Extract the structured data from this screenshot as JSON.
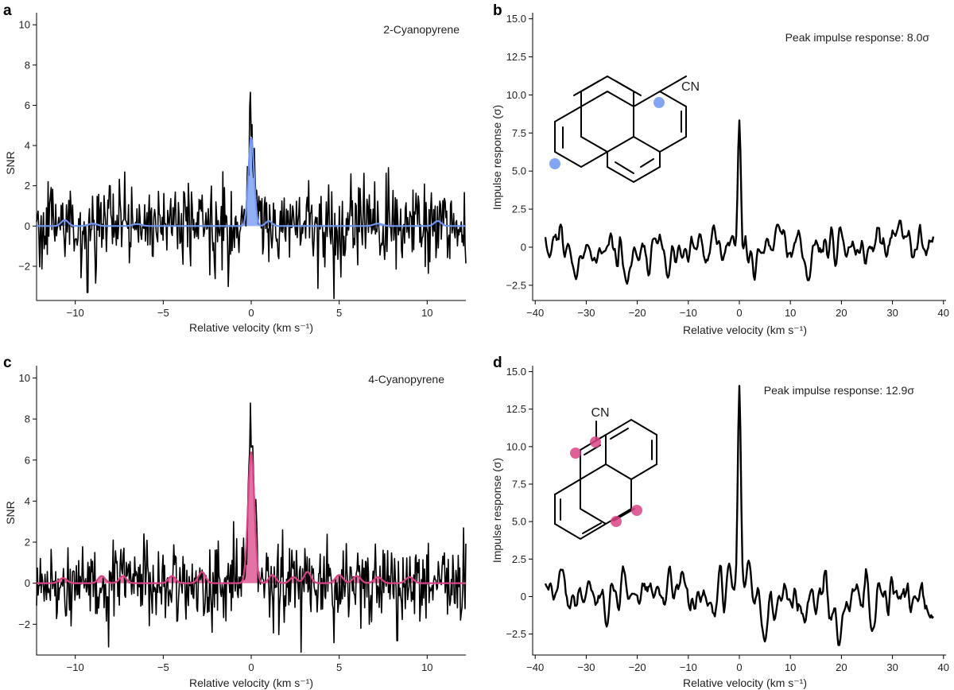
{
  "figure": {
    "panels": [
      "a",
      "b",
      "c",
      "d"
    ]
  },
  "colors": {
    "blue": "#6f95f0",
    "pink": "#d94487",
    "trace": "#000000"
  },
  "chart_data": [
    {
      "id": "a",
      "type": "line",
      "letter": "a",
      "annotation": "2-Cyanopyrene",
      "xlabel": "Relative velocity (km s⁻¹)",
      "ylabel": "SNR",
      "xlim": [
        -12.2,
        12.2
      ],
      "ylim": [
        -3.7,
        10.6
      ],
      "xticks": [
        -10,
        -5,
        0,
        5,
        10
      ],
      "xtick_labels": [
        "−10",
        "−5",
        "0",
        "5",
        "10"
      ],
      "yticks": [
        -2,
        0,
        2,
        4,
        6,
        8,
        10
      ],
      "ytick_labels": [
        "−2",
        "0",
        "2",
        "4",
        "6",
        "8",
        "10"
      ],
      "series": [
        {
          "role": "observed",
          "color": "#000000",
          "noise_sigma": 0.95,
          "peak": {
            "x": 0.0,
            "y": 5.5,
            "width": 0.18
          },
          "extremes": [
            {
              "x": 4.7,
              "y": -3.6
            },
            {
              "x": 3.8,
              "y": -3.1
            },
            {
              "x": -9.3,
              "y": -3.3
            },
            {
              "x": -1.3,
              "y": -3.0
            },
            {
              "x": 7.8,
              "y": 2.9
            },
            {
              "x": -1.6,
              "y": 2.7
            }
          ]
        },
        {
          "role": "model",
          "color": "#6f95f0",
          "components": [
            {
              "x": 0.0,
              "y": 4.4,
              "width": 0.16
            },
            {
              "x": -10.6,
              "y": 0.3,
              "width": 0.2
            },
            {
              "x": -9.0,
              "y": 0.12,
              "width": 0.25
            },
            {
              "x": -6.5,
              "y": 0.1,
              "width": 0.25
            },
            {
              "x": 1.0,
              "y": 0.25,
              "width": 0.18
            },
            {
              "x": 7.2,
              "y": 0.12,
              "width": 0.25
            },
            {
              "x": 10.6,
              "y": 0.25,
              "width": 0.2
            }
          ]
        }
      ]
    },
    {
      "id": "b",
      "type": "line",
      "letter": "b",
      "annotation": "Peak impulse response: 8.0σ",
      "xlabel": "Relative velocity (km s⁻¹)",
      "ylabel": "Impulse response (σ)",
      "xlim": [
        -40.5,
        40.5
      ],
      "ylim": [
        -3.5,
        15.4
      ],
      "xticks": [
        -40,
        -30,
        -20,
        -10,
        0,
        10,
        20,
        30,
        40
      ],
      "xtick_labels": [
        "−40",
        "−30",
        "−20",
        "−10",
        "0",
        "10",
        "20",
        "30",
        "40"
      ],
      "yticks": [
        -2.5,
        0,
        2.5,
        5.0,
        7.5,
        10.0,
        12.5,
        15.0
      ],
      "ytick_labels": [
        "−2.5",
        "0",
        "2.5",
        "5.0",
        "7.5",
        "10.0",
        "12.5",
        "15.0"
      ],
      "series": [
        {
          "role": "impulse",
          "color": "#000000",
          "x_range": [
            -38,
            38
          ],
          "noise_sigma": 0.85,
          "peak": {
            "x": 0.0,
            "y": 8.0,
            "width": 0.3
          },
          "features": [
            {
              "x": 7.5,
              "y": 1.5
            },
            {
              "x": 31.5,
              "y": 1.8
            },
            {
              "x": 13.5,
              "y": -2.2
            },
            {
              "x": -22,
              "y": -2.4
            },
            {
              "x": -32,
              "y": -2.1
            },
            {
              "x": -14,
              "y": -2.0
            }
          ]
        }
      ],
      "molecule": {
        "name": "2-cyanopyrene",
        "substituent": "CN",
        "highlight_color": "#6f95f0"
      }
    },
    {
      "id": "c",
      "type": "line",
      "letter": "c",
      "annotation": "4-Cyanopyrene",
      "xlabel": "Relative velocity (km s⁻¹)",
      "ylabel": "SNR",
      "xlim": [
        -12.2,
        12.2
      ],
      "ylim": [
        -3.5,
        10.6
      ],
      "xticks": [
        -10,
        -5,
        0,
        5,
        10
      ],
      "xtick_labels": [
        "−10",
        "−5",
        "0",
        "5",
        "10"
      ],
      "yticks": [
        -2,
        0,
        2,
        4,
        6,
        8,
        10
      ],
      "ytick_labels": [
        "−2",
        "0",
        "2",
        "4",
        "6",
        "8",
        "10"
      ],
      "series": [
        {
          "role": "observed",
          "color": "#000000",
          "noise_sigma": 0.95,
          "peak": {
            "x": 0.0,
            "y": 7.3,
            "width": 0.18
          },
          "extremes": [
            {
              "x": -8.1,
              "y": -3.1
            },
            {
              "x": 4.7,
              "y": -2.9
            },
            {
              "x": -6.1,
              "y": 2.4
            },
            {
              "x": -1.0,
              "y": 3.0
            },
            {
              "x": 1.8,
              "y": 2.6
            },
            {
              "x": 8.3,
              "y": -2.8
            }
          ]
        },
        {
          "role": "model",
          "color": "#d94487",
          "components": [
            {
              "x": 0.0,
              "y": 6.4,
              "width": 0.18
            },
            {
              "x": -2.8,
              "y": 0.55,
              "width": 0.2
            },
            {
              "x": 3.2,
              "y": 0.55,
              "width": 0.2
            },
            {
              "x": -8.5,
              "y": 0.35,
              "width": 0.2
            },
            {
              "x": -7.3,
              "y": 0.35,
              "width": 0.2
            },
            {
              "x": -4.5,
              "y": 0.35,
              "width": 0.2
            },
            {
              "x": 1.2,
              "y": 0.4,
              "width": 0.2
            },
            {
              "x": 2.4,
              "y": 0.3,
              "width": 0.2
            },
            {
              "x": 5.0,
              "y": 0.4,
              "width": 0.22
            },
            {
              "x": 6.0,
              "y": 0.35,
              "width": 0.22
            },
            {
              "x": 7.2,
              "y": 0.3,
              "width": 0.22
            },
            {
              "x": 9.0,
              "y": 0.3,
              "width": 0.22
            },
            {
              "x": -10.7,
              "y": 0.25,
              "width": 0.22
            }
          ]
        }
      ]
    },
    {
      "id": "d",
      "type": "line",
      "letter": "d",
      "annotation": "Peak impulse response: 12.9σ",
      "xlabel": "Relative velocity (km s⁻¹)",
      "ylabel": "Impulse response (σ)",
      "xlim": [
        -40.5,
        40.5
      ],
      "ylim": [
        -3.9,
        15.4
      ],
      "xticks": [
        -40,
        -30,
        -20,
        -10,
        0,
        10,
        20,
        30,
        40
      ],
      "xtick_labels": [
        "−40",
        "−30",
        "−20",
        "−10",
        "0",
        "10",
        "20",
        "30",
        "40"
      ],
      "yticks": [
        -2.5,
        0,
        2.5,
        5.0,
        7.5,
        10.0,
        12.5,
        15.0
      ],
      "ytick_labels": [
        "−2.5",
        "0",
        "2.5",
        "5.0",
        "7.5",
        "10.0",
        "12.5",
        "15.0"
      ],
      "series": [
        {
          "role": "impulse",
          "color": "#000000",
          "x_range": [
            -38,
            38
          ],
          "noise_sigma": 0.95,
          "peak": {
            "x": 0.0,
            "y": 12.9,
            "width": 0.3
          },
          "features": [
            {
              "x": 5.0,
              "y": -3.0
            },
            {
              "x": 19.5,
              "y": -3.3
            },
            {
              "x": -26,
              "y": -2.0
            },
            {
              "x": -35,
              "y": 1.8
            },
            {
              "x": -2.0,
              "y": 2.2
            },
            {
              "x": 1.8,
              "y": 2.4
            },
            {
              "x": 26,
              "y": -2.3
            }
          ]
        }
      ],
      "molecule": {
        "name": "4-cyanopyrene",
        "substituent": "CN",
        "highlight_color": "#d94487"
      }
    }
  ]
}
